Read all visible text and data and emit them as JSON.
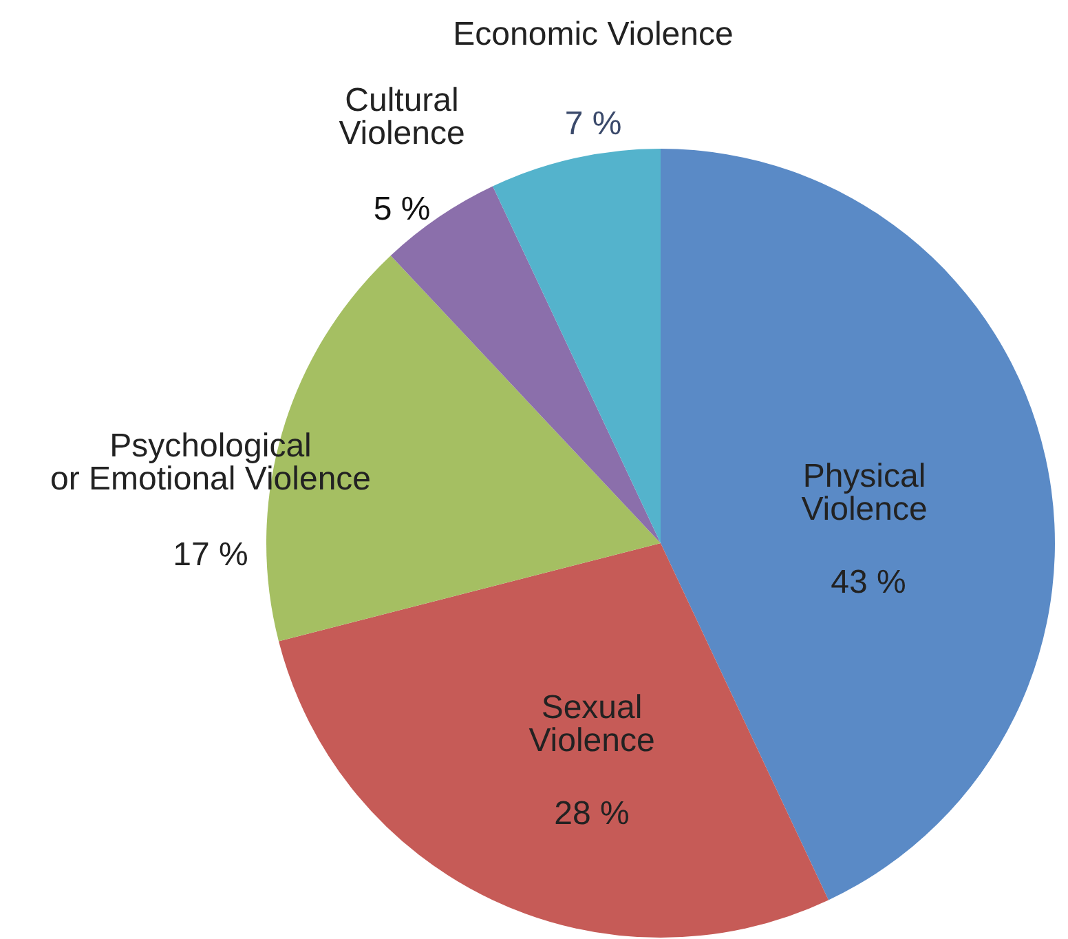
{
  "chart_data": {
    "type": "pie",
    "categories": [
      "Physical Violence",
      "Sexual Violence",
      "Psychological or Emotional Violence",
      "Cultural Violence",
      "Economic Violence"
    ],
    "values": [
      43,
      28,
      17,
      5,
      7
    ],
    "colors": [
      "#5a8ac6",
      "#c65b57",
      "#a5bf62",
      "#8b6fab",
      "#54b3cc"
    ],
    "value_labels": [
      "43 %",
      "28 %",
      "17 %",
      "5 %",
      "7 %"
    ],
    "legend": false
  }
}
